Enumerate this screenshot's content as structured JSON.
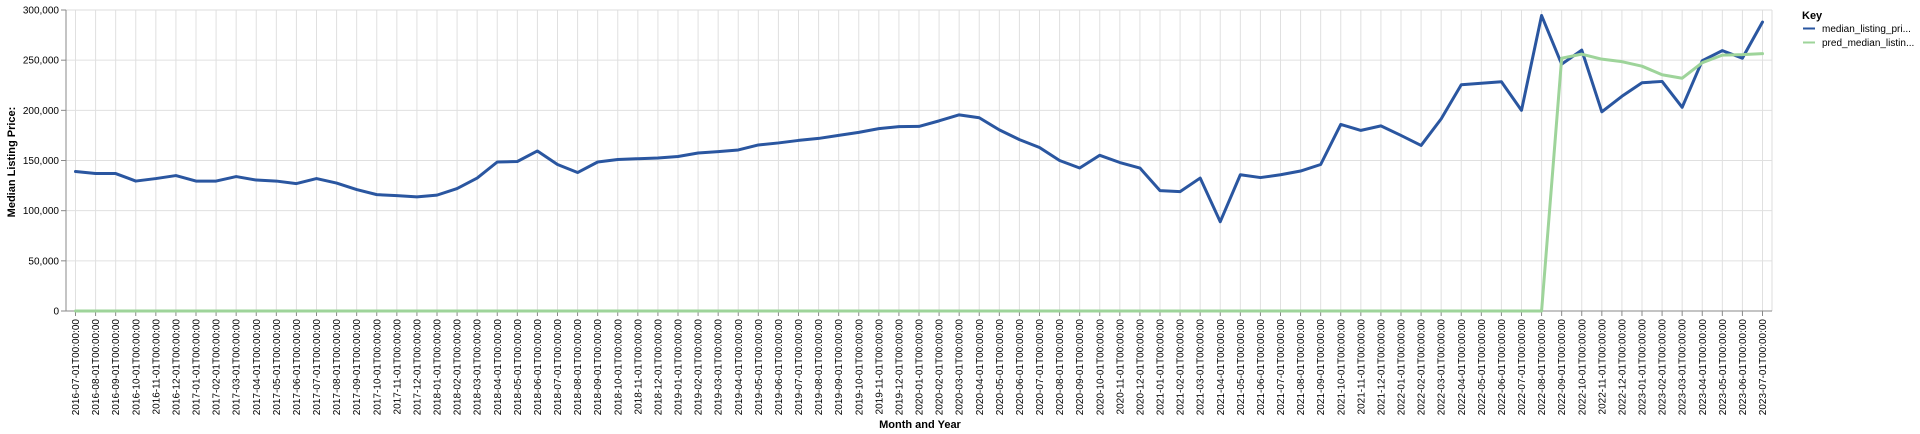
{
  "chart_data": {
    "type": "line",
    "xlabel": "Month and Year",
    "ylabel": "Median Listing Price:",
    "ylim": [
      0,
      300000
    ],
    "y_ticks": [
      "0",
      "50,000",
      "100,000",
      "150,000",
      "200,000",
      "250,000",
      "300,000"
    ],
    "y_tick_values": [
      0,
      50000,
      100000,
      150000,
      200000,
      250000,
      300000
    ],
    "grid": true,
    "legend_position": "right",
    "legend_title": "Key",
    "x": [
      "2016-07-01T00:00:00",
      "2016-08-01T00:00:00",
      "2016-09-01T00:00:00",
      "2016-10-01T00:00:00",
      "2016-11-01T00:00:00",
      "2016-12-01T00:00:00",
      "2017-01-01T00:00:00",
      "2017-02-01T00:00:00",
      "2017-03-01T00:00:00",
      "2017-04-01T00:00:00",
      "2017-05-01T00:00:00",
      "2017-06-01T00:00:00",
      "2017-07-01T00:00:00",
      "2017-08-01T00:00:00",
      "2017-09-01T00:00:00",
      "2017-10-01T00:00:00",
      "2017-11-01T00:00:00",
      "2017-12-01T00:00:00",
      "2018-01-01T00:00:00",
      "2018-02-01T00:00:00",
      "2018-03-01T00:00:00",
      "2018-04-01T00:00:00",
      "2018-05-01T00:00:00",
      "2018-06-01T00:00:00",
      "2018-07-01T00:00:00",
      "2018-08-01T00:00:00",
      "2018-09-01T00:00:00",
      "2018-10-01T00:00:00",
      "2018-11-01T00:00:00",
      "2018-12-01T00:00:00",
      "2019-01-01T00:00:00",
      "2019-02-01T00:00:00",
      "2019-03-01T00:00:00",
      "2019-04-01T00:00:00",
      "2019-05-01T00:00:00",
      "2019-06-01T00:00:00",
      "2019-07-01T00:00:00",
      "2019-08-01T00:00:00",
      "2019-09-01T00:00:00",
      "2019-10-01T00:00:00",
      "2019-11-01T00:00:00",
      "2019-12-01T00:00:00",
      "2020-01-01T00:00:00",
      "2020-02-01T00:00:00",
      "2020-03-01T00:00:00",
      "2020-04-01T00:00:00",
      "2020-05-01T00:00:00",
      "2020-06-01T00:00:00",
      "2020-07-01T00:00:00",
      "2020-08-01T00:00:00",
      "2020-09-01T00:00:00",
      "2020-10-01T00:00:00",
      "2020-11-01T00:00:00",
      "2020-12-01T00:00:00",
      "2021-01-01T00:00:00",
      "2021-02-01T00:00:00",
      "2021-03-01T00:00:00",
      "2021-04-01T00:00:00",
      "2021-05-01T00:00:00",
      "2021-06-01T00:00:00",
      "2021-07-01T00:00:00",
      "2021-08-01T00:00:00",
      "2021-09-01T00:00:00",
      "2021-10-01T00:00:00",
      "2021-11-01T00:00:00",
      "2021-12-01T00:00:00",
      "2022-01-01T00:00:00",
      "2022-02-01T00:00:00",
      "2022-03-01T00:00:00",
      "2022-04-01T00:00:00",
      "2022-05-01T00:00:00",
      "2022-06-01T00:00:00",
      "2022-07-01T00:00:00",
      "2022-08-01T00:00:00",
      "2022-09-01T00:00:00",
      "2022-10-01T00:00:00",
      "2022-11-01T00:00:00",
      "2022-12-01T00:00:00",
      "2023-01-01T00:00:00",
      "2023-02-01T00:00:00",
      "2023-03-01T00:00:00",
      "2023-04-01T00:00:00",
      "2023-05-01T00:00:00",
      "2023-06-01T00:00:00",
      "2023-07-01T00:00:00"
    ],
    "series": [
      {
        "name": "median_listing_pri...",
        "color": "#2a56a0",
        "values": [
          139000,
          137000,
          137000,
          129500,
          132000,
          135000,
          129500,
          129500,
          134000,
          130500,
          129500,
          127000,
          132000,
          127500,
          121000,
          116000,
          115000,
          113700,
          115500,
          122000,
          132500,
          148500,
          149000,
          159500,
          146000,
          138000,
          148500,
          151000,
          151800,
          152500,
          154000,
          157500,
          158800,
          160500,
          165500,
          167500,
          170000,
          172000,
          175000,
          178000,
          181800,
          183800,
          184000,
          189500,
          195500,
          192600,
          180500,
          170800,
          163000,
          150000,
          142500,
          155200,
          148000,
          142500,
          120000,
          119000,
          132500,
          89000,
          135800,
          133000,
          135800,
          139500,
          146000,
          186000,
          180000,
          184500,
          175000,
          165000,
          191500,
          225500,
          227000,
          228500,
          200000,
          294500,
          246000,
          260000,
          198500,
          214000,
          227500,
          228800,
          203000,
          249500,
          259500,
          252000,
          288000
        ]
      },
      {
        "name": "pred_median_listin...",
        "color": "#9ed49a",
        "values": [
          0,
          0,
          0,
          0,
          0,
          0,
          0,
          0,
          0,
          0,
          0,
          0,
          0,
          0,
          0,
          0,
          0,
          0,
          0,
          0,
          0,
          0,
          0,
          0,
          0,
          0,
          0,
          0,
          0,
          0,
          0,
          0,
          0,
          0,
          0,
          0,
          0,
          0,
          0,
          0,
          0,
          0,
          0,
          0,
          0,
          0,
          0,
          0,
          0,
          0,
          0,
          0,
          0,
          0,
          0,
          0,
          0,
          0,
          0,
          0,
          0,
          0,
          0,
          0,
          0,
          0,
          0,
          0,
          0,
          0,
          0,
          0,
          0,
          0,
          252000,
          256000,
          251000,
          248500,
          244000,
          235500,
          232000,
          247500,
          255000,
          255500,
          256500
        ]
      }
    ]
  }
}
